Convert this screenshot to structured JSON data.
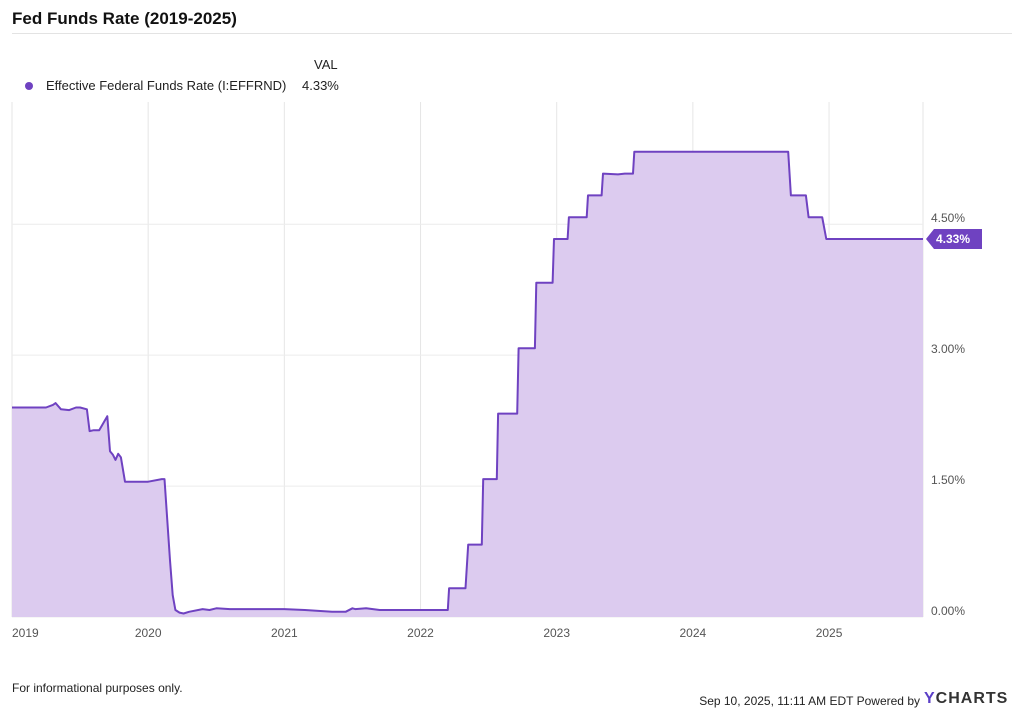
{
  "header": {
    "title": "Fed Funds Rate (2019-2025)"
  },
  "legend": {
    "column_header": "VAL",
    "items": [
      {
        "name": "Effective Federal Funds Rate (I:EFFRND)",
        "value": "4.33%",
        "color": "#6f42c1"
      }
    ]
  },
  "footer": {
    "note": "For informational purposes only.",
    "timestamp": "Sep 10, 2025, 11:11 AM EDT Powered by",
    "brand_initial": "Y",
    "brand_rest": "CHARTS"
  },
  "chart_data": {
    "type": "area",
    "x_label_values": [
      "2019",
      "2020",
      "2021",
      "2022",
      "2023",
      "2024",
      "2025"
    ],
    "y_label_values": [
      "0.00%",
      "1.50%",
      "3.00%",
      "4.50%"
    ],
    "ylim": [
      0,
      5.9
    ],
    "xlim": [
      2019.0,
      2025.69
    ],
    "grid": true,
    "legend_position": "top-left",
    "line_color": "#6f42c1",
    "fill_color": "#dccbef",
    "last_value_label": "4.33%",
    "series": [
      {
        "name": "Effective Federal Funds Rate (I:EFFRND)",
        "x": [
          2019.0,
          2019.25,
          2019.3,
          2019.32,
          2019.36,
          2019.42,
          2019.47,
          2019.5,
          2019.55,
          2019.57,
          2019.6,
          2019.64,
          2019.7,
          2019.72,
          2019.74,
          2019.76,
          2019.78,
          2019.8,
          2019.83,
          2019.86,
          2020.0,
          2020.1,
          2020.12,
          2020.16,
          2020.18,
          2020.2,
          2020.23,
          2020.26,
          2020.3,
          2020.4,
          2020.45,
          2020.5,
          2020.6,
          2020.65,
          2021.0,
          2021.15,
          2021.25,
          2021.35,
          2021.45,
          2021.5,
          2021.52,
          2021.6,
          2021.7,
          2022.0,
          2022.2,
          2022.21,
          2022.33,
          2022.35,
          2022.45,
          2022.46,
          2022.56,
          2022.57,
          2022.71,
          2022.72,
          2022.84,
          2022.85,
          2022.97,
          2022.98,
          2023.08,
          2023.09,
          2023.22,
          2023.23,
          2023.33,
          2023.34,
          2023.45,
          2023.5,
          2023.56,
          2023.57,
          2024.7,
          2024.72,
          2024.83,
          2024.85,
          2024.95,
          2024.98,
          2025.69
        ],
        "y": [
          2.4,
          2.4,
          2.43,
          2.45,
          2.38,
          2.37,
          2.4,
          2.4,
          2.38,
          2.13,
          2.14,
          2.14,
          2.3,
          1.9,
          1.86,
          1.8,
          1.87,
          1.83,
          1.55,
          1.55,
          1.55,
          1.58,
          1.58,
          0.65,
          0.25,
          0.08,
          0.05,
          0.04,
          0.06,
          0.09,
          0.08,
          0.1,
          0.09,
          0.09,
          0.09,
          0.08,
          0.07,
          0.06,
          0.06,
          0.1,
          0.09,
          0.1,
          0.08,
          0.08,
          0.08,
          0.33,
          0.33,
          0.83,
          0.83,
          1.58,
          1.58,
          2.33,
          2.33,
          3.08,
          3.08,
          3.83,
          3.83,
          4.33,
          4.33,
          4.58,
          4.58,
          4.83,
          4.83,
          5.08,
          5.07,
          5.08,
          5.08,
          5.33,
          5.33,
          4.83,
          4.83,
          4.58,
          4.58,
          4.33,
          4.33
        ]
      }
    ]
  }
}
